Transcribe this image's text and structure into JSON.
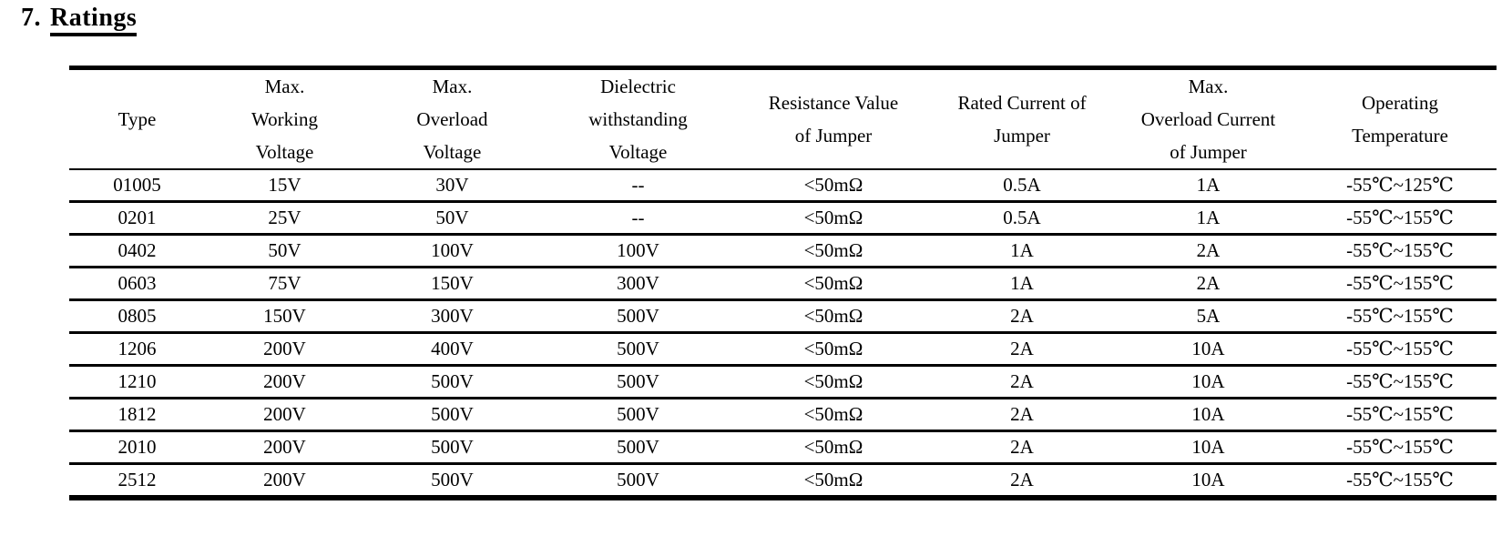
{
  "page": {
    "background_color": "#ffffff",
    "text_color": "#000000"
  },
  "section": {
    "number": "7.",
    "title": "Ratings"
  },
  "table": {
    "headers": [
      "Type",
      "Max.\nWorking\nVoltage",
      "Max.\nOverload\nVoltage",
      "Dielectric\nwithstanding\nVoltage",
      "Resistance Value\nof Jumper",
      "Rated Current of\nJumper",
      "Max.\nOverload Current\nof Jumper",
      "Operating\nTemperature"
    ],
    "rows": [
      [
        "01005",
        "15V",
        "30V",
        "--",
        "<50mΩ",
        "0.5A",
        "1A",
        "-55℃~125℃"
      ],
      [
        "0201",
        "25V",
        "50V",
        "--",
        "<50mΩ",
        "0.5A",
        "1A",
        "-55℃~155℃"
      ],
      [
        "0402",
        "50V",
        "100V",
        "100V",
        "<50mΩ",
        "1A",
        "2A",
        "-55℃~155℃"
      ],
      [
        "0603",
        "75V",
        "150V",
        "300V",
        "<50mΩ",
        "1A",
        "2A",
        "-55℃~155℃"
      ],
      [
        "0805",
        "150V",
        "300V",
        "500V",
        "<50mΩ",
        "2A",
        "5A",
        "-55℃~155℃"
      ],
      [
        "1206",
        "200V",
        "400V",
        "500V",
        "<50mΩ",
        "2A",
        "10A",
        "-55℃~155℃"
      ],
      [
        "1210",
        "200V",
        "500V",
        "500V",
        "<50mΩ",
        "2A",
        "10A",
        "-55℃~155℃"
      ],
      [
        "1812",
        "200V",
        "500V",
        "500V",
        "<50mΩ",
        "2A",
        "10A",
        "-55℃~155℃"
      ],
      [
        "2010",
        "200V",
        "500V",
        "500V",
        "<50mΩ",
        "2A",
        "10A",
        "-55℃~155℃"
      ],
      [
        "2512",
        "200V",
        "500V",
        "500V",
        "<50mΩ",
        "2A",
        "10A",
        "-55℃~155℃"
      ]
    ]
  }
}
